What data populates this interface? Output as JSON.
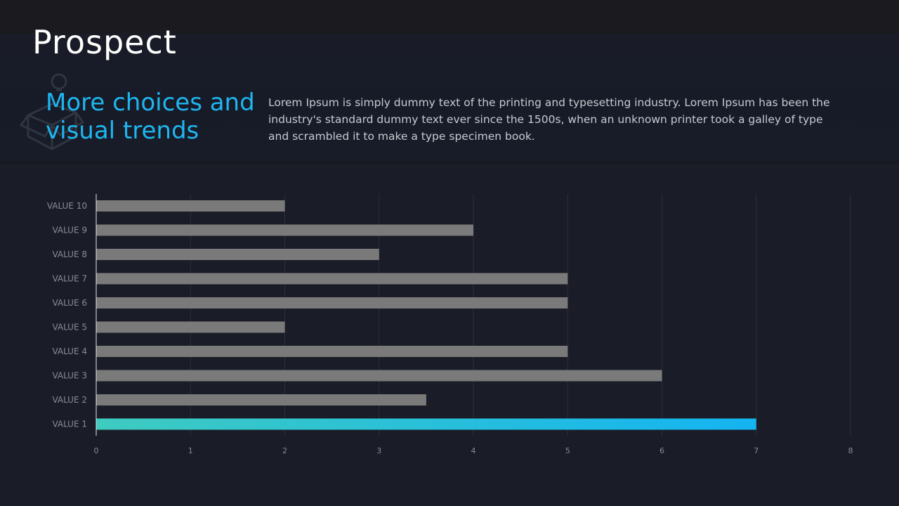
{
  "header": {
    "title": "Prospect",
    "subtitle": "More choices and visual trends",
    "body": "Lorem Ipsum is simply dummy text of the printing and typesetting industry. Lorem Ipsum has been the industry's standard dummy text ever since the 1500s, when an unknown printer took a galley of type and scrambled it to make a type specimen book."
  },
  "decoration": {
    "icon": "box-bulb-icon"
  },
  "colors": {
    "bar": "#7a7a7a",
    "highlight_start": "#3ecbc0",
    "highlight_end": "#14b4f2",
    "subtitle": "#1fb6f0",
    "grid": "#2c2f3b",
    "tick_text": "#8a8c94"
  },
  "chart_data": {
    "type": "bar",
    "orientation": "horizontal",
    "categories": [
      "VALUE 1",
      "VALUE 2",
      "VALUE 3",
      "VALUE 4",
      "VALUE 5",
      "VALUE 6",
      "VALUE 7",
      "VALUE 8",
      "VALUE 9",
      "VALUE 10"
    ],
    "values": [
      7,
      3.5,
      6,
      5,
      2,
      5,
      5,
      3,
      4,
      2
    ],
    "highlight_category": "VALUE 1",
    "xlim": [
      0,
      8
    ],
    "xticks": [
      0,
      1,
      2,
      3,
      4,
      5,
      6,
      7,
      8
    ],
    "grid": "vertical",
    "legend": "none"
  }
}
